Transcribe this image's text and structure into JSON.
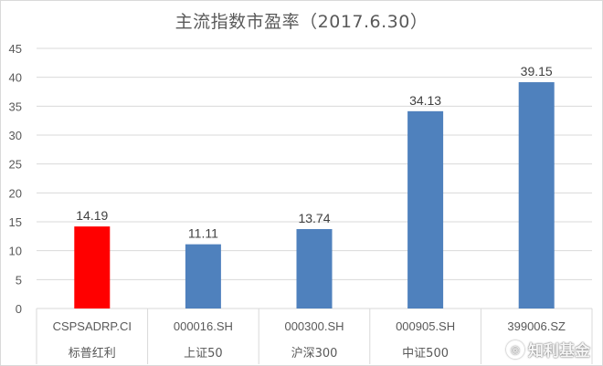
{
  "chart_data": {
    "type": "bar",
    "title": "主流指数市盈率（2017.6.30）",
    "categories": [
      {
        "code": "CSPSADRP.CI",
        "name": "标普红利"
      },
      {
        "code": "000016.SH",
        "name": "上证50"
      },
      {
        "code": "000300.SH",
        "name": "沪深300"
      },
      {
        "code": "000905.SH",
        "name": "中证500"
      },
      {
        "code": "399006.SZ",
        "name": ""
      }
    ],
    "values": [
      14.19,
      11.11,
      13.74,
      34.13,
      39.15
    ],
    "value_labels": [
      "14.19",
      "11.11",
      "13.74",
      "34.13",
      "39.15"
    ],
    "bar_colors": [
      "#ff0000",
      "#4f81bd",
      "#4f81bd",
      "#4f81bd",
      "#4f81bd"
    ],
    "yticks": [
      "0",
      "5",
      "10",
      "15",
      "20",
      "25",
      "30",
      "35",
      "40",
      "45"
    ],
    "ylim": [
      0,
      45
    ],
    "grid": true,
    "xlabel": "",
    "ylabel": ""
  },
  "colors": {
    "highlight": "#ff0000",
    "bar": "#4f81bd",
    "grid": "#d9d9d9",
    "text": "#595959"
  },
  "watermark": {
    "text": "知利基金",
    "icon": "fund-logo-icon"
  }
}
